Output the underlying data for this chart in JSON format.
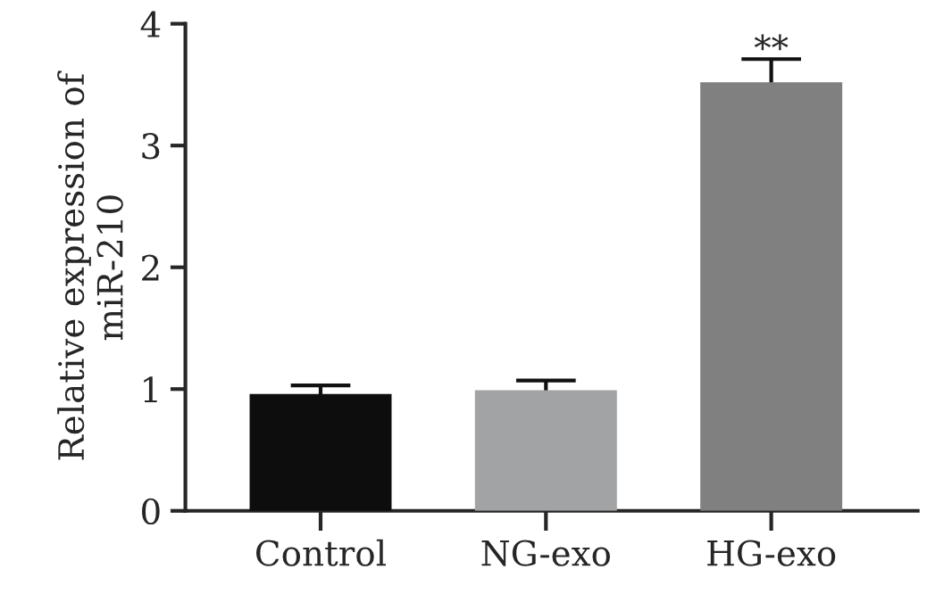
{
  "chart_data": {
    "type": "bar",
    "ylabel": "Relative expression of\nmiR-210",
    "categories": [
      "Control",
      "NG-exo",
      "HG-exo"
    ],
    "values": [
      0.96,
      0.99,
      3.52
    ],
    "colors": [
      "#0d0d0d",
      "#a2a3a5",
      "#808080"
    ],
    "errors": [
      0.07,
      0.08,
      0.19
    ],
    "ylim": [
      0,
      4
    ],
    "yticks": [
      0,
      1,
      2,
      3,
      4
    ],
    "grid": false,
    "annotations": [
      "**"
    ]
  }
}
